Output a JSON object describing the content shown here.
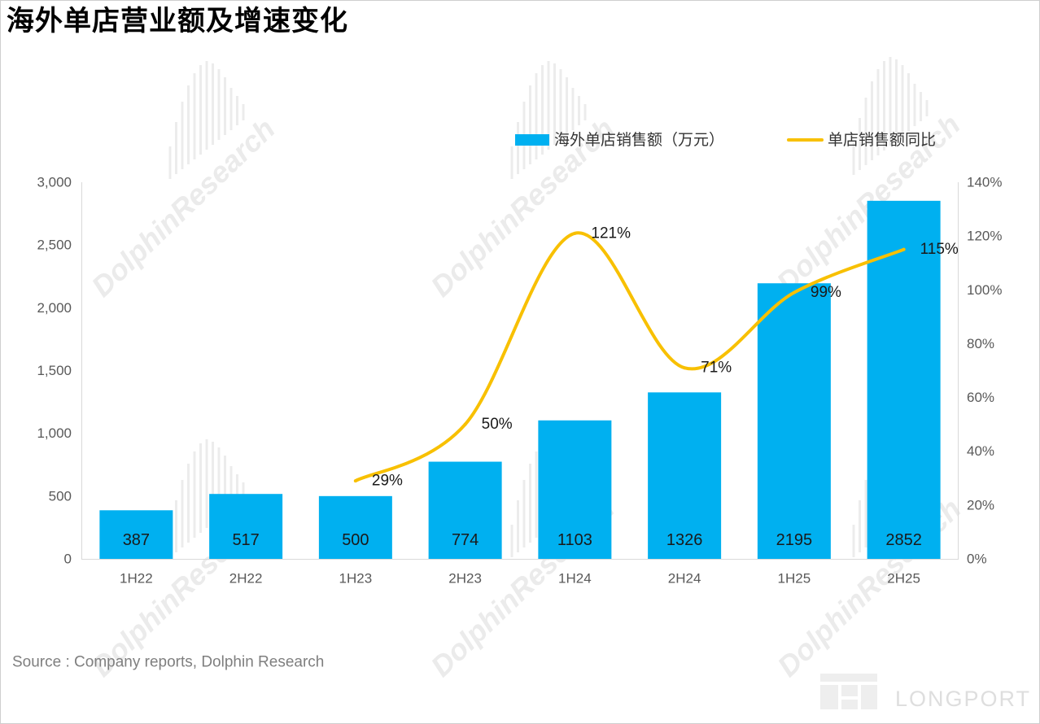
{
  "source": "Source : Company reports, Dolphin Research",
  "watermarks": {
    "text": "DolphinResearch",
    "brand": "LONGPORT"
  },
  "colors": {
    "bar": "#00B0F0",
    "line": "#F8C000",
    "axis_line": "#D9D9D9",
    "axis_text": "#595959",
    "watermark": "#EBEBEB"
  },
  "chart_data": {
    "type": "bar",
    "title": "海外单店营业额及增速变化",
    "categories": [
      "1H22",
      "2H22",
      "1H23",
      "2H23",
      "1H24",
      "2H24",
      "1H25",
      "2H25"
    ],
    "series": [
      {
        "name": "海外单店销售额（万元）",
        "type": "bar",
        "values": [
          387,
          517,
          500,
          774,
          1103,
          1326,
          2195,
          2852
        ]
      },
      {
        "name": "单店销售额同比",
        "type": "line",
        "secondary_axis": true,
        "smooth": true,
        "values": [
          null,
          null,
          29,
          50,
          121,
          71,
          99,
          115
        ],
        "data_labels": [
          null,
          null,
          "29%",
          "50%",
          "121%",
          "71%",
          "99%",
          "115%"
        ]
      }
    ],
    "ylim": [
      0,
      3000
    ],
    "y_ticks": [
      "0",
      "500",
      "1,000",
      "1,500",
      "2,000",
      "2,500",
      "3,000"
    ],
    "y2lim": [
      0,
      140
    ],
    "y2_ticks": [
      "0%",
      "20%",
      "40%",
      "60%",
      "80%",
      "100%",
      "120%",
      "140%"
    ],
    "grid": false,
    "legend_position": "top-right"
  }
}
